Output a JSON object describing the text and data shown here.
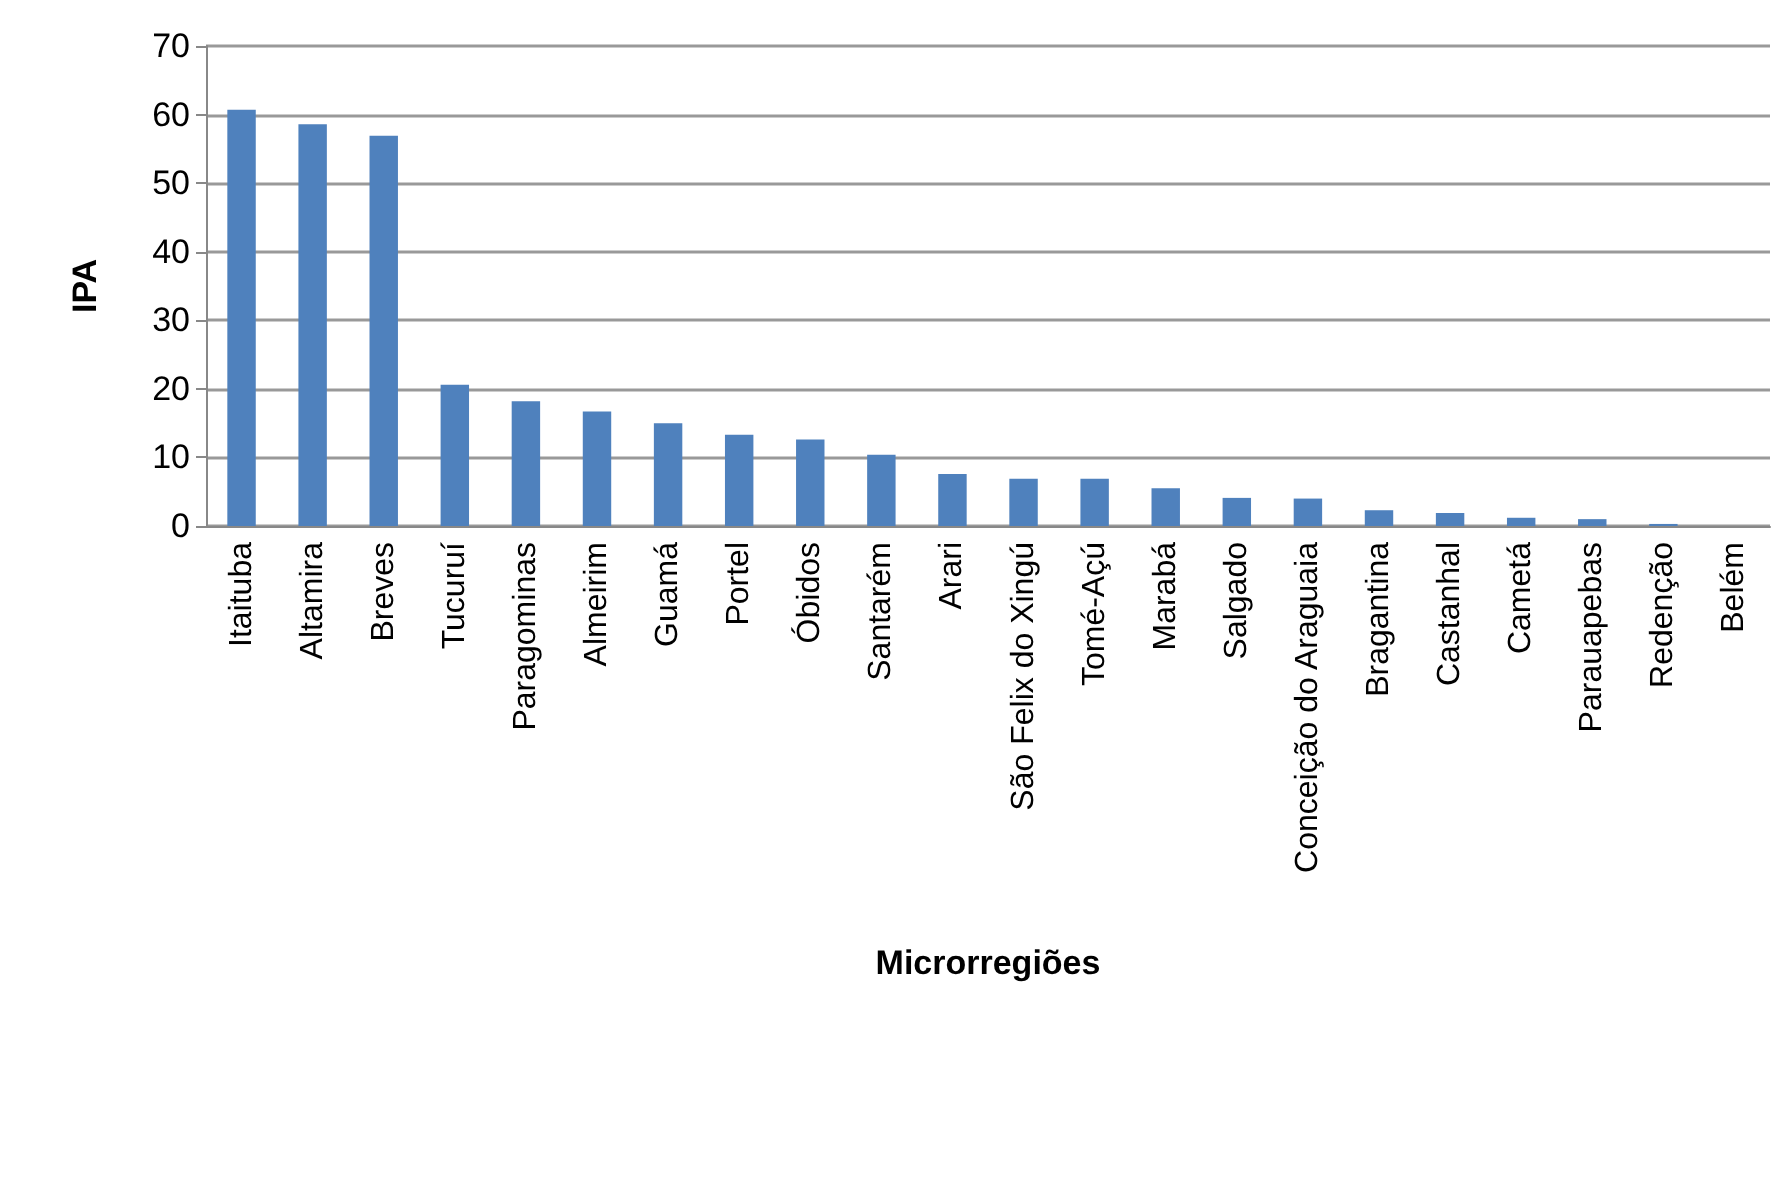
{
  "chart_data": {
    "type": "bar",
    "xlabel": "Microrregiões",
    "ylabel": "IPA",
    "categories": [
      "Itaituba",
      "Altamira",
      "Breves",
      "Tucuruí",
      "Paragominas",
      "Almeirim",
      "Guamá",
      "Portel",
      "Óbidos",
      "Santarém",
      "Arari",
      "São Felix do Xingú",
      "Tomé-Açú",
      "Marabá",
      "Salgado",
      "Conceição do Araguaia",
      "Bragantina",
      "Castanhal",
      "Cametá",
      "Parauapebas",
      "Redenção",
      "Belém"
    ],
    "values": [
      60.7,
      58.6,
      56.9,
      20.6,
      18.2,
      16.7,
      15.0,
      13.3,
      12.6,
      10.4,
      7.6,
      6.9,
      6.9,
      5.5,
      4.1,
      4.0,
      2.3,
      1.9,
      1.2,
      1.0,
      0.3,
      0
    ],
    "color": "#4f81bd",
    "ylim": [
      0,
      70
    ],
    "yticks": [
      0,
      10,
      20,
      30,
      40,
      50,
      60,
      70
    ],
    "grid": "y"
  }
}
